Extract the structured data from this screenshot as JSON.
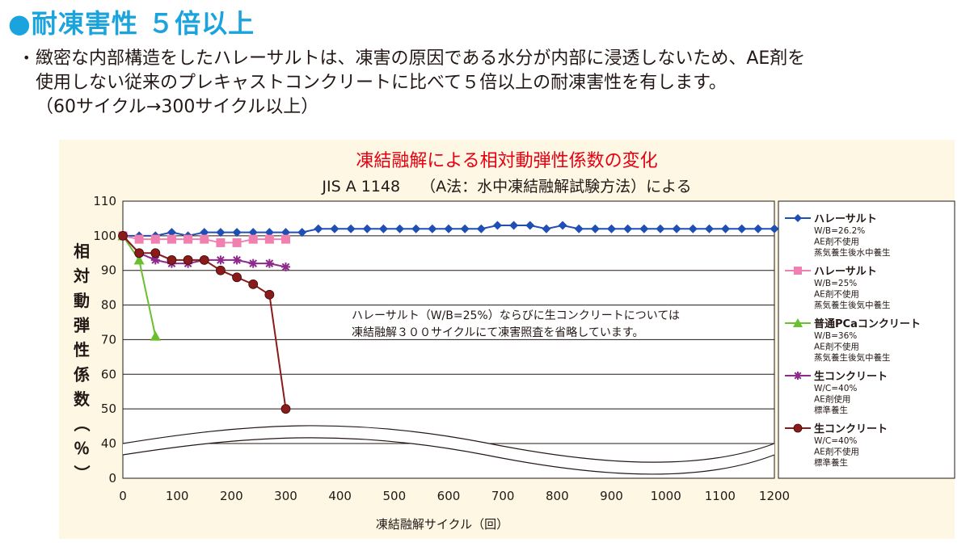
{
  "heading": "●耐凍害性 ５倍以上",
  "bullet": "•",
  "description": {
    "line1": "緻密な内部構造をしたハレーサルトは、凍害の原因である水分が内部に浸透しないため、AE剤を",
    "line2": "使用しない従来のプレキャストコンクリートに比べて５倍以上の耐凍害性を有します。",
    "line3": "（60サイクル→300サイクル以上）"
  },
  "colors": {
    "heading": "#1aa3dc",
    "chart_title": "#e60012",
    "panel_bg": "#fdf7e4"
  },
  "chart_data": {
    "type": "line",
    "title": "凍結融解による相対動弾性係数の変化",
    "subtitle": "JIS A 1148　 （A法：水中凍結融解試験方法）による",
    "xlabel": "凍結融解サイクル（回）",
    "ylabel": "相対動弾性係数（％）",
    "xlim": [
      0,
      1200
    ],
    "ylim": [
      0,
      110
    ],
    "axis_break": [
      40,
      50
    ],
    "x_ticks": [
      "0",
      "100",
      "200",
      "300",
      "400",
      "500",
      "600",
      "700",
      "800",
      "900",
      "1000",
      "1100",
      "1200"
    ],
    "y_ticks": [
      "0",
      "40",
      "50",
      "60",
      "70",
      "80",
      "90",
      "100",
      "110"
    ],
    "grid": "horizontal",
    "legend_position": "right",
    "annotation": {
      "line1": "ハレーサルト（W/B=25%）ならびに生コンクリートについては",
      "line2": "凍結融解３００サイクルにて凍害照査を省略しています。"
    },
    "series": [
      {
        "name": "ハレーサルト",
        "details": [
          "W/B=26.2%",
          "AE剤不使用",
          "蒸気養生後水中養生"
        ],
        "color": "#1f4eb4",
        "marker": "diamond",
        "x": [
          0,
          30,
          60,
          90,
          120,
          150,
          180,
          210,
          240,
          270,
          300,
          330,
          360,
          390,
          420,
          450,
          480,
          510,
          540,
          570,
          600,
          630,
          660,
          690,
          720,
          750,
          780,
          810,
          840,
          870,
          900,
          930,
          960,
          990,
          1020,
          1050,
          1080,
          1110,
          1140,
          1170,
          1200
        ],
        "y": [
          100,
          100,
          100,
          101,
          100,
          101,
          101,
          101,
          101,
          101,
          101,
          101,
          102,
          102,
          102,
          102,
          102,
          102,
          102,
          102,
          102,
          102,
          102,
          103,
          103,
          103,
          102,
          103,
          102,
          102,
          102,
          102,
          102,
          102,
          102,
          102,
          102,
          102,
          102,
          102,
          102
        ]
      },
      {
        "name": "ハレーサルト",
        "details": [
          "W/B=25%",
          "AE剤不使用",
          "蒸気養生後気中養生"
        ],
        "color": "#f080b0",
        "marker": "square",
        "x": [
          0,
          30,
          60,
          90,
          120,
          150,
          180,
          210,
          240,
          270,
          300
        ],
        "y": [
          100,
          99,
          99,
          99,
          99,
          99,
          98,
          98,
          99,
          99,
          99
        ]
      },
      {
        "name": "普通PCaコンクリート",
        "details": [
          "W/B=36%",
          "AE剤不使用",
          "蒸気養生後気中養生"
        ],
        "color": "#6abf2e",
        "marker": "triangle",
        "x": [
          0,
          30,
          60
        ],
        "y": [
          100,
          93,
          71
        ]
      },
      {
        "name": "生コンクリート",
        "details": [
          "W/C=40%",
          "AE剤使用",
          "標準養生"
        ],
        "color": "#8c2b8c",
        "marker": "star",
        "x": [
          0,
          30,
          60,
          90,
          120,
          150,
          180,
          210,
          240,
          270,
          300
        ],
        "y": [
          100,
          95,
          93,
          92,
          92,
          93,
          93,
          93,
          92,
          92,
          91
        ]
      },
      {
        "name": "生コンクリート",
        "details": [
          "W/C=40%",
          "AE剤不使用",
          "標準養生"
        ],
        "color": "#8b1a1a",
        "marker": "circle",
        "x": [
          0,
          30,
          60,
          90,
          120,
          150,
          180,
          210,
          240,
          270,
          300
        ],
        "y": [
          100,
          95,
          95,
          93,
          93,
          93,
          90,
          88,
          86,
          83,
          50
        ]
      }
    ]
  }
}
